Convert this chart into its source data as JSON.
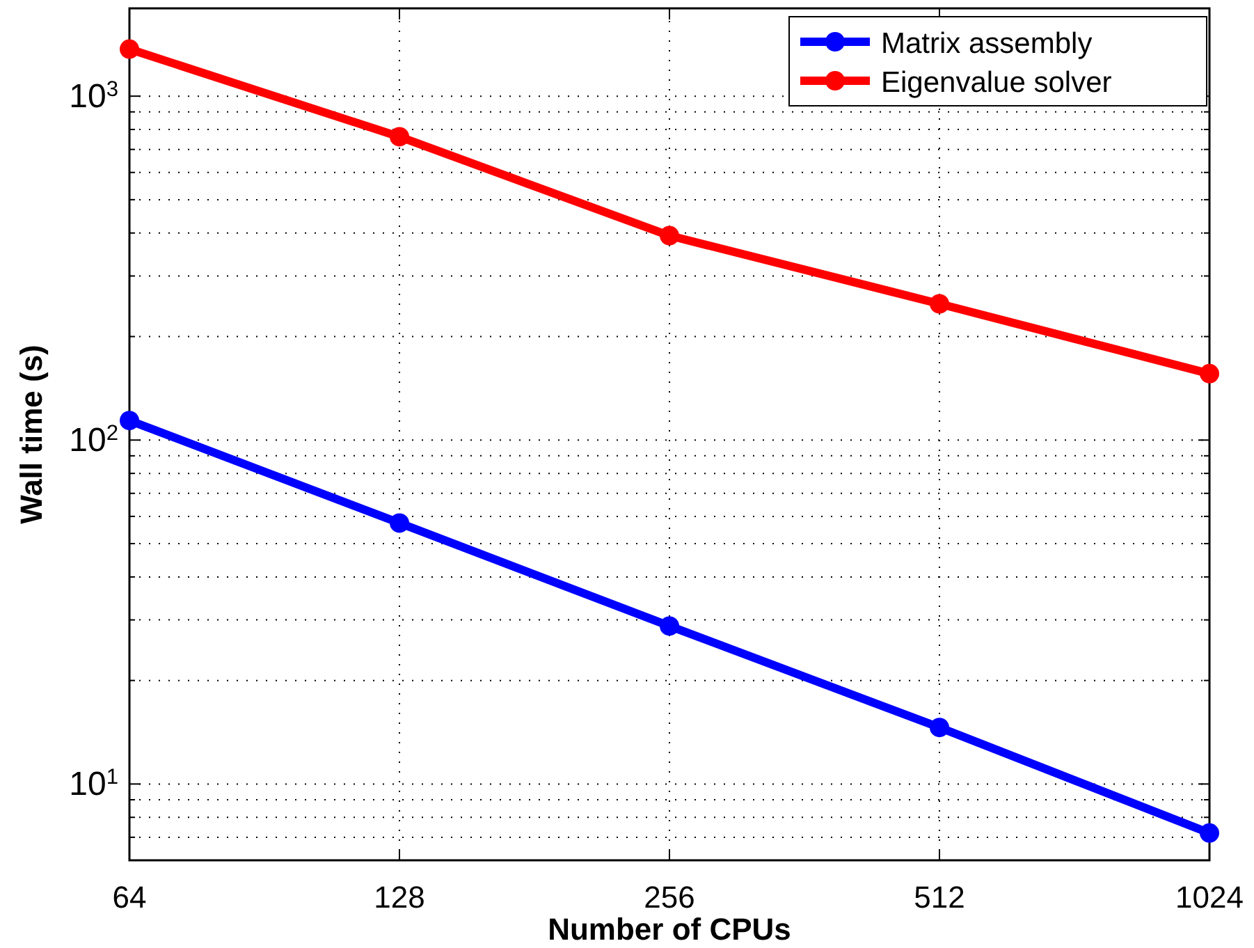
{
  "chart_data": {
    "type": "line",
    "xlabel": "Number of CPUs",
    "ylabel": "Wall time (s)",
    "x": [
      64,
      128,
      256,
      512,
      1024
    ],
    "series": [
      {
        "name": "Matrix assembly",
        "color": "#0000ff",
        "values": [
          114,
          57.4,
          28.8,
          14.6,
          7.2
        ]
      },
      {
        "name": "Eigenvalue solver",
        "color": "#ff0000",
        "values": [
          1370,
          762,
          393,
          249,
          156
        ]
      }
    ],
    "log": "xy",
    "xlim": [
      64,
      1024
    ],
    "ylim": [
      6,
      1800
    ],
    "xticks": [
      64,
      128,
      256,
      512,
      1024
    ],
    "yticks": [
      {
        "value": 10,
        "label": "10$^{1}$"
      },
      {
        "value": 100,
        "label": "10$^{2}$"
      },
      {
        "value": 1000,
        "label": "10$^{3}$"
      }
    ],
    "grid": true,
    "legend": "top right",
    "marker": "circle",
    "line_style": "solid"
  }
}
